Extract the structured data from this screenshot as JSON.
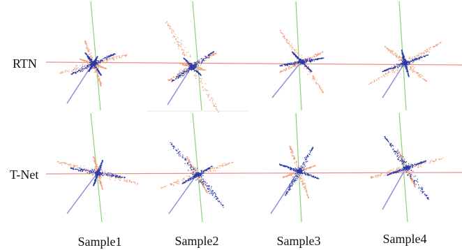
{
  "rows": [
    {
      "label": "RTN"
    },
    {
      "label": "T-Net"
    }
  ],
  "columns": [
    {
      "label": "Sample1"
    },
    {
      "label": "Sample2"
    },
    {
      "label": "Sample3"
    },
    {
      "label": "Sample4"
    }
  ],
  "colors": {
    "reference_cloud": "#f0a078",
    "aligned_cloud": "#2a3aa8",
    "axis_x": "#f08a8a",
    "axis_y": "#8ccf7a",
    "axis_z": "#8888d8"
  }
}
